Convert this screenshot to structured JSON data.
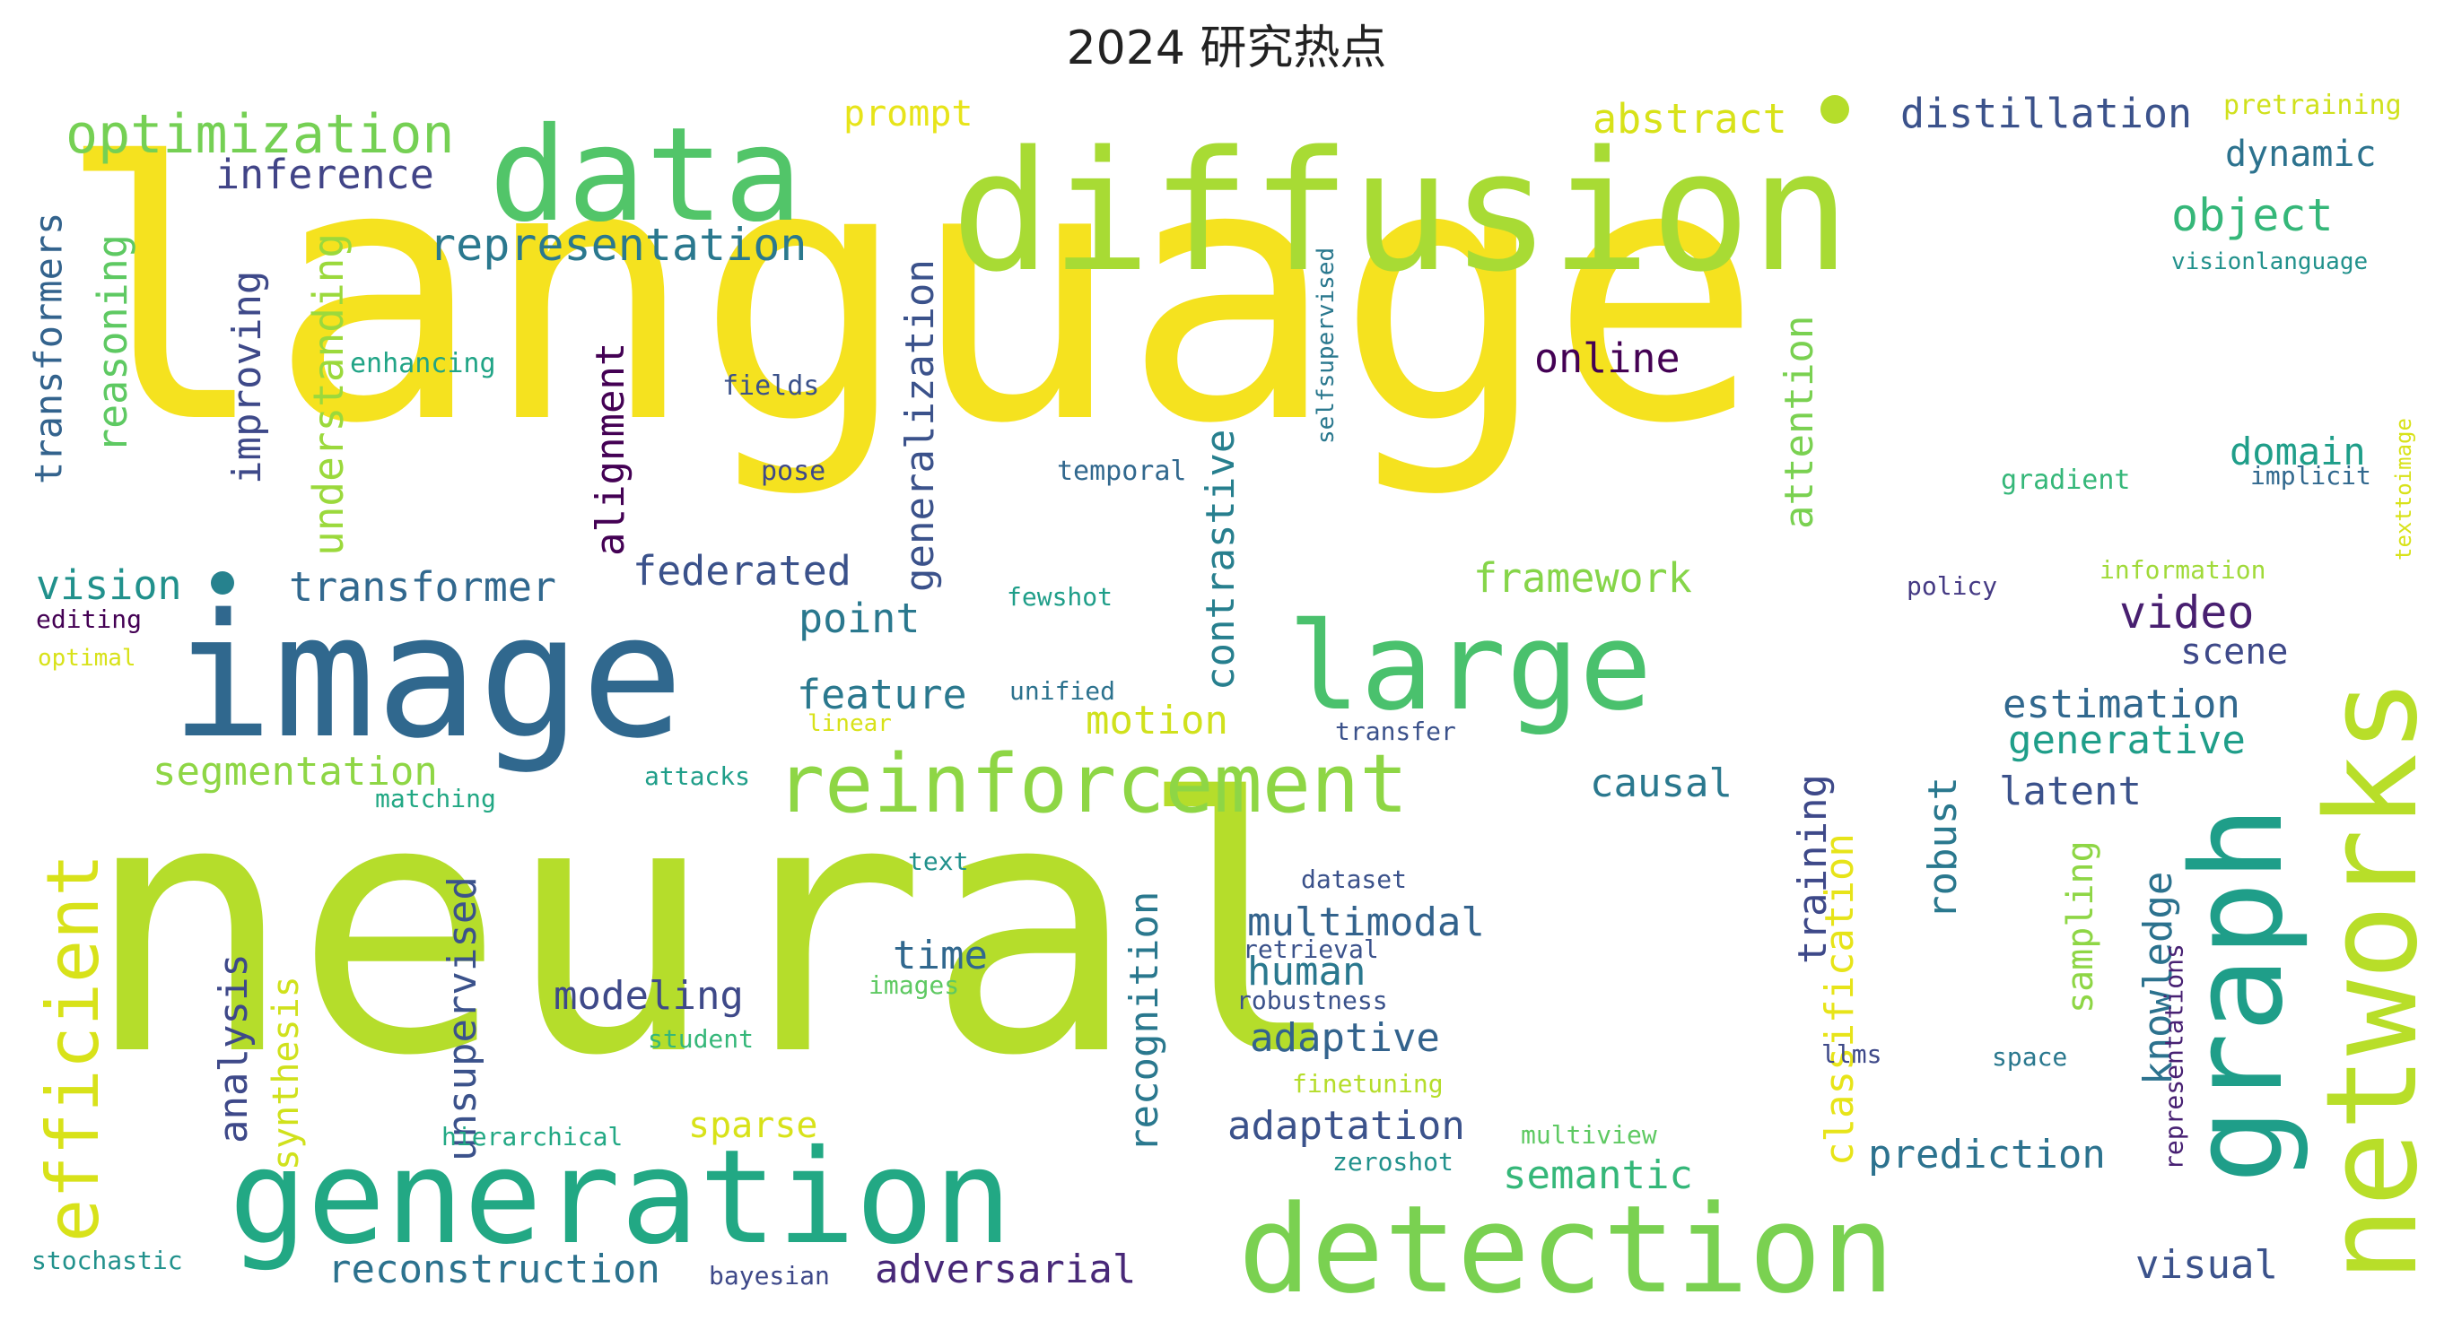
{
  "title": "2024 研究热点",
  "words": [
    {
      "text": "language",
      "color": "#f5e21f"
    },
    {
      "text": "neural",
      "color": "#b5dd2b"
    },
    {
      "text": "diffusion",
      "color": "#a8db34"
    },
    {
      "text": "image",
      "color": "#30688e"
    },
    {
      "text": "data",
      "color": "#52c569"
    },
    {
      "text": "large",
      "color": "#4ac16d"
    },
    {
      "text": "networks",
      "color": "#b8de29"
    },
    {
      "text": "graph",
      "color": "#1f9e89"
    },
    {
      "text": "generation",
      "color": "#22a884"
    },
    {
      "text": "detection",
      "color": "#7ad151"
    },
    {
      "text": "reinforcement",
      "color": "#8ed645"
    },
    {
      "text": "efficient",
      "color": "#d8e219"
    },
    {
      "text": "optimization",
      "color": "#75d054"
    },
    {
      "text": "representation",
      "color": "#2a788e"
    },
    {
      "text": "prompt",
      "color": "#e7e419"
    },
    {
      "text": "abstract",
      "color": "#d8e219"
    },
    {
      "text": "distillation",
      "color": "#3b528b"
    },
    {
      "text": "pretraining",
      "color": "#d0e11c"
    },
    {
      "text": "inference",
      "color": "#414487"
    },
    {
      "text": "dynamic",
      "color": "#2c728e"
    },
    {
      "text": "object",
      "color": "#35b779"
    },
    {
      "text": "visionlanguage",
      "color": "#21918c"
    },
    {
      "text": "selfsupervised",
      "color": "#2a788e"
    },
    {
      "text": "texttoimage",
      "color": "#d8e219"
    },
    {
      "text": "transformers",
      "color": "#33638d"
    },
    {
      "text": "reasoning",
      "color": "#5ec962"
    },
    {
      "text": "improving",
      "color": "#3e4989"
    },
    {
      "text": "understanding",
      "color": "#9bd93c"
    },
    {
      "text": "enhancing",
      "color": "#20a486"
    },
    {
      "text": "fields",
      "color": "#3b528b"
    },
    {
      "text": "pose",
      "color": "#3e4989"
    },
    {
      "text": "temporal",
      "color": "#31688e"
    },
    {
      "text": "alignment",
      "color": "#440154"
    },
    {
      "text": "generalization",
      "color": "#3b528b"
    },
    {
      "text": "online",
      "color": "#440154"
    },
    {
      "text": "attention",
      "color": "#7ad151"
    },
    {
      "text": "gradient",
      "color": "#35b779"
    },
    {
      "text": "implicit",
      "color": "#31688e"
    },
    {
      "text": "domain",
      "color": "#1f9e89"
    },
    {
      "text": "contrastive",
      "color": "#277f8e"
    },
    {
      "text": "vision",
      "color": "#21918c"
    },
    {
      "text": "transformer",
      "color": "#31688e"
    },
    {
      "text": "federated",
      "color": "#3b528b"
    },
    {
      "text": "editing",
      "color": "#440154"
    },
    {
      "text": "optimal",
      "color": "#d8e219"
    },
    {
      "text": "point",
      "color": "#2a788e"
    },
    {
      "text": "framework",
      "color": "#86d549"
    },
    {
      "text": "fewshot",
      "color": "#1f9e89"
    },
    {
      "text": "information",
      "color": "#a0da39"
    },
    {
      "text": "policy",
      "color": "#443983"
    },
    {
      "text": "video",
      "color": "#481f70"
    },
    {
      "text": "scene",
      "color": "#3e4989"
    },
    {
      "text": "feature",
      "color": "#2a788e"
    },
    {
      "text": "unified",
      "color": "#2c728e"
    },
    {
      "text": "motion",
      "color": "#d0e11c"
    },
    {
      "text": "linear",
      "color": "#d8e219"
    },
    {
      "text": "transfer",
      "color": "#3b528b"
    },
    {
      "text": "estimation",
      "color": "#31688e"
    },
    {
      "text": "generative",
      "color": "#1f9e89"
    },
    {
      "text": "segmentation",
      "color": "#8ed645"
    },
    {
      "text": "attacks",
      "color": "#1f9e89"
    },
    {
      "text": "matching",
      "color": "#22a884"
    },
    {
      "text": "causal",
      "color": "#2a788e"
    },
    {
      "text": "latent",
      "color": "#3b528b"
    },
    {
      "text": "robust",
      "color": "#2a788e"
    },
    {
      "text": "training",
      "color": "#3e4989"
    },
    {
      "text": "text",
      "color": "#21918c"
    },
    {
      "text": "dataset",
      "color": "#3b528b"
    },
    {
      "text": "unsupervised",
      "color": "#3b528b"
    },
    {
      "text": "analysis",
      "color": "#3e4989"
    },
    {
      "text": "synthesis",
      "color": "#d0e11c"
    },
    {
      "text": "recognition",
      "color": "#2a788e"
    },
    {
      "text": "multimodal",
      "color": "#33638d"
    },
    {
      "text": "time",
      "color": "#31688e"
    },
    {
      "text": "retrieval",
      "color": "#3b528b"
    },
    {
      "text": "human",
      "color": "#2a788e"
    },
    {
      "text": "classification",
      "color": "#e7e419"
    },
    {
      "text": "knowledge",
      "color": "#2c728e"
    },
    {
      "text": "sampling",
      "color": "#8ed645"
    },
    {
      "text": "representations",
      "color": "#482173"
    },
    {
      "text": "modeling",
      "color": "#3e4989"
    },
    {
      "text": "images",
      "color": "#5ec962"
    },
    {
      "text": "robustness",
      "color": "#3b528b"
    },
    {
      "text": "student",
      "color": "#35b779"
    },
    {
      "text": "adaptive",
      "color": "#33638d"
    },
    {
      "text": "llms",
      "color": "#3e4989"
    },
    {
      "text": "space",
      "color": "#2a788e"
    },
    {
      "text": "finetuning",
      "color": "#b5dd2b"
    },
    {
      "text": "hierarchical",
      "color": "#22a884"
    },
    {
      "text": "sparse",
      "color": "#d8e219"
    },
    {
      "text": "adaptation",
      "color": "#3b528b"
    },
    {
      "text": "multiview",
      "color": "#5ec962"
    },
    {
      "text": "zeroshot",
      "color": "#21918c"
    },
    {
      "text": "semantic",
      "color": "#35b779"
    },
    {
      "text": "prediction",
      "color": "#2c728e"
    },
    {
      "text": "reconstruction",
      "color": "#2c728e"
    },
    {
      "text": "adversarial",
      "color": "#482878"
    },
    {
      "text": "visual",
      "color": "#3b528b"
    },
    {
      "text": "stochastic",
      "color": "#21918c"
    },
    {
      "text": "bayesian",
      "color": "#3e4989"
    },
    {
      "text": "dot_a",
      "color": "#b5dd2b"
    },
    {
      "text": "dot_b",
      "color": "#26828e"
    }
  ]
}
